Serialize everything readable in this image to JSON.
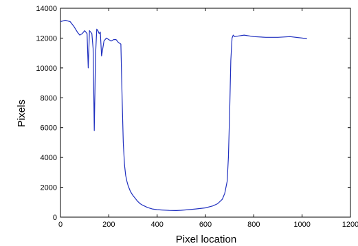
{
  "chart_data": {
    "type": "line",
    "title": "",
    "xlabel": "Pixel location",
    "ylabel": "Pixels",
    "xlim": [
      0,
      1200
    ],
    "ylim": [
      0,
      14000
    ],
    "xticks": [
      0,
      200,
      400,
      600,
      800,
      1000,
      1200
    ],
    "yticks": [
      0,
      2000,
      4000,
      6000,
      8000,
      10000,
      12000,
      14000
    ],
    "grid": false,
    "legend": "none",
    "series": [
      {
        "color": "#1f2fbf",
        "x": [
          0,
          20,
          40,
          55,
          70,
          80,
          90,
          100,
          110,
          115,
          120,
          130,
          135,
          140,
          145,
          150,
          155,
          160,
          165,
          170,
          180,
          190,
          200,
          210,
          220,
          230,
          240,
          250,
          255,
          260,
          265,
          270,
          275,
          280,
          290,
          300,
          310,
          320,
          330,
          340,
          360,
          380,
          400,
          420,
          450,
          480,
          500,
          530,
          560,
          600,
          630,
          650,
          670,
          680,
          690,
          695,
          700,
          705,
          710,
          715,
          720,
          740,
          760,
          800,
          850,
          900,
          950,
          1000,
          1020
        ],
        "y": [
          13100,
          13200,
          13100,
          12800,
          12400,
          12200,
          12300,
          12500,
          12300,
          10000,
          12500,
          12300,
          11300,
          5800,
          10800,
          12600,
          12500,
          12300,
          12400,
          10800,
          11800,
          12000,
          11900,
          11800,
          11900,
          11900,
          11700,
          11600,
          8000,
          5000,
          3500,
          2800,
          2400,
          2100,
          1700,
          1450,
          1250,
          1050,
          900,
          800,
          650,
          550,
          500,
          480,
          450,
          440,
          460,
          500,
          550,
          620,
          750,
          900,
          1200,
          1600,
          2400,
          4000,
          7000,
          10500,
          12000,
          12200,
          12100,
          12150,
          12200,
          12100,
          12050,
          12050,
          12100,
          12000,
          11950
        ]
      }
    ]
  }
}
